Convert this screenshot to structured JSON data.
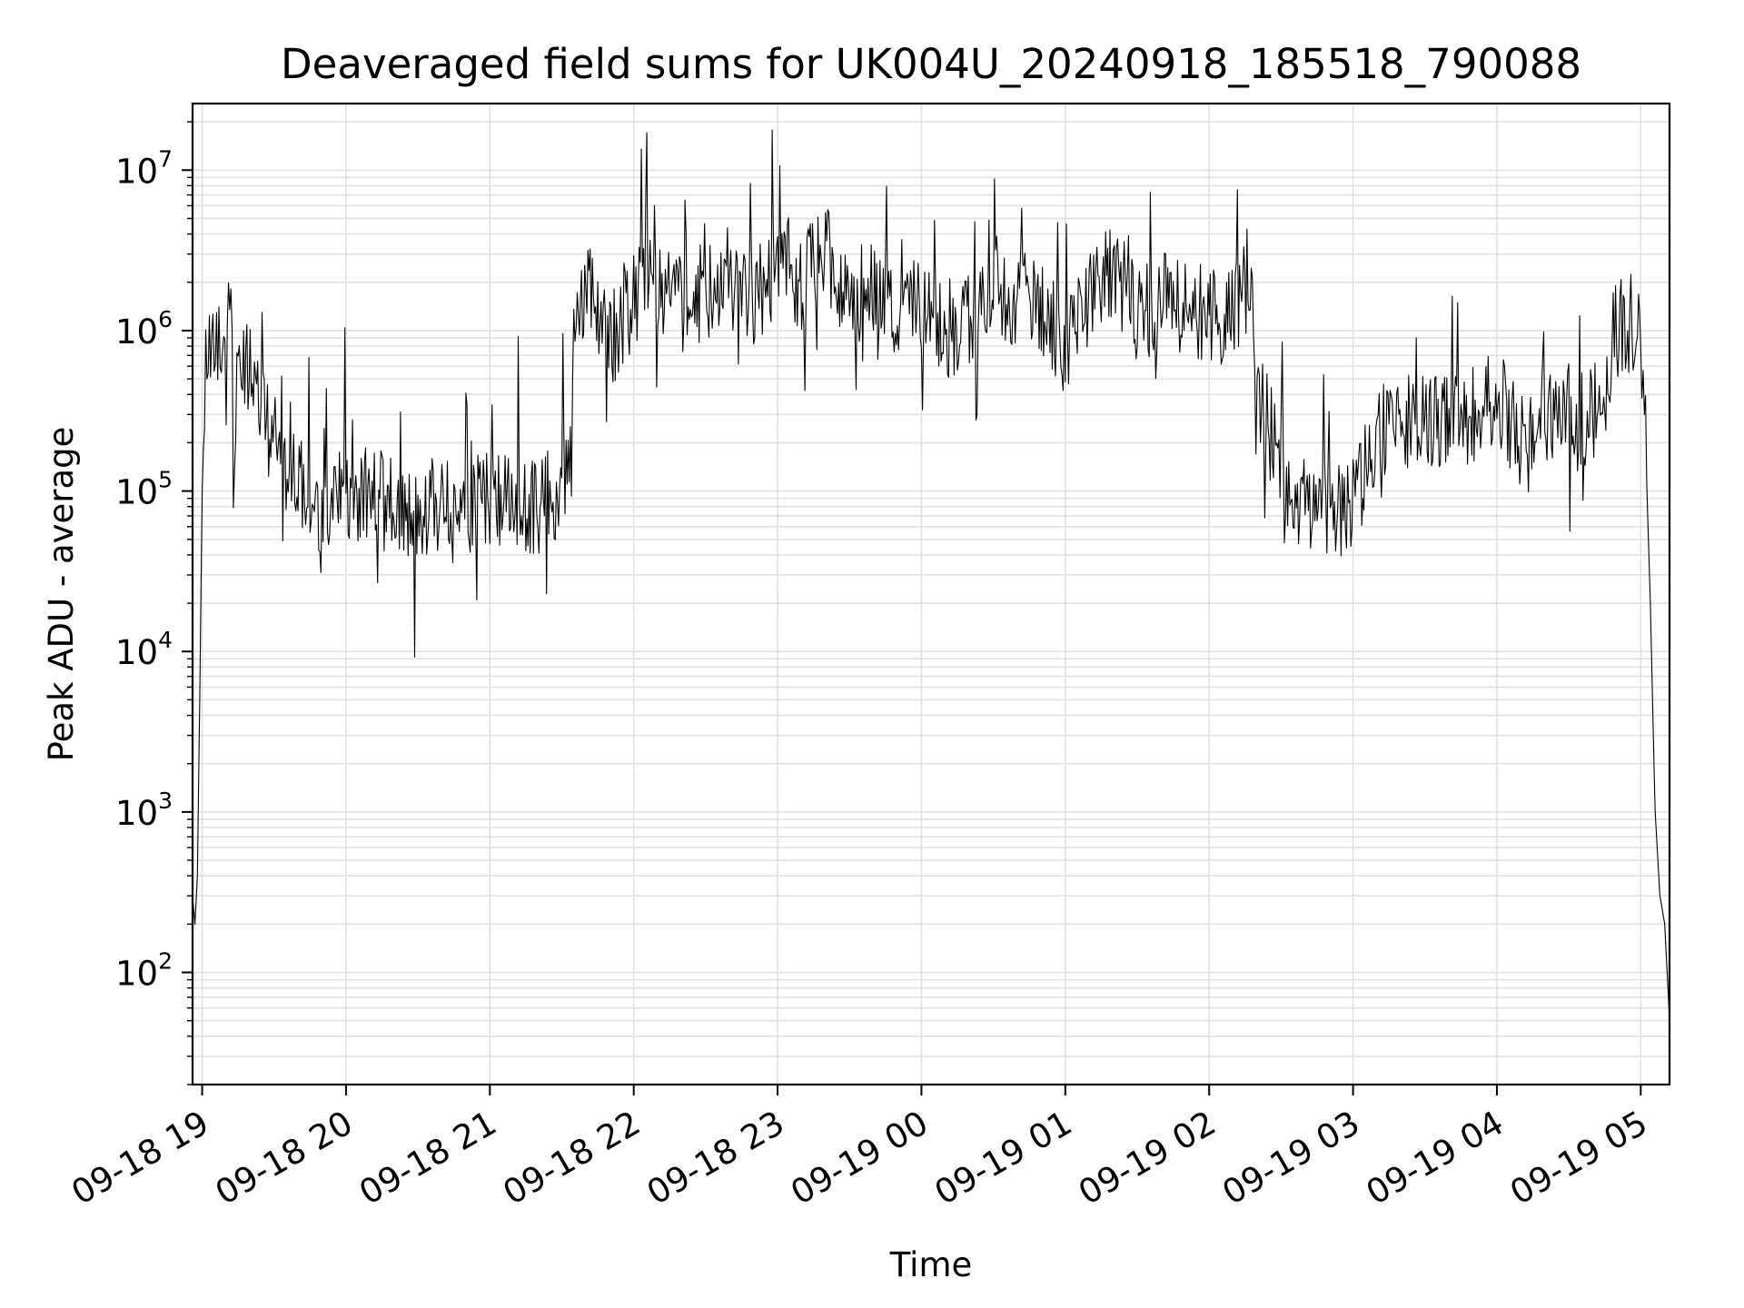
{
  "chart_data": {
    "type": "line",
    "title": "Deaveraged field sums for UK004U_20240918_185518_790088",
    "xlabel": "Time",
    "ylabel": "Peak ADU - average",
    "yscale": "log",
    "ylim": [
      20,
      26000000
    ],
    "xlim": [
      "2024-09-18 18:56",
      "2024-09-19 05:12"
    ],
    "grid": true,
    "line_color": "#000000",
    "grid_color": "#e0e0e0",
    "x_ticks": [
      "09-18 19",
      "09-18 20",
      "09-18 21",
      "09-18 22",
      "09-18 23",
      "09-19 00",
      "09-19 01",
      "09-19 02",
      "09-19 03",
      "09-19 04",
      "09-19 05"
    ],
    "y_ticks": [
      {
        "value": 100,
        "base": "10",
        "exp": "2"
      },
      {
        "value": 1000,
        "base": "10",
        "exp": "3"
      },
      {
        "value": 10000,
        "base": "10",
        "exp": "4"
      },
      {
        "value": 100000,
        "base": "10",
        "exp": "5"
      },
      {
        "value": 1000000,
        "base": "10",
        "exp": "6"
      },
      {
        "value": 10000000,
        "base": "10",
        "exp": "7"
      }
    ],
    "series": [
      {
        "x": [
          "2024-09-18 18:56",
          "2024-09-18 18:57",
          "2024-09-18 18:58",
          "2024-09-18 18:59",
          "2024-09-18 19:00",
          "2024-09-18 19:01",
          "2024-09-18 19:02",
          "2024-09-18 19:04",
          "2024-09-18 19:06",
          "2024-09-18 19:08",
          "2024-09-18 19:10",
          "2024-09-18 19:12",
          "2024-09-18 19:13",
          "2024-09-18 19:15",
          "2024-09-18 19:20",
          "2024-09-18 19:30",
          "2024-09-18 19:40",
          "2024-09-18 19:50",
          "2024-09-18 20:00",
          "2024-09-18 20:10",
          "2024-09-18 20:20",
          "2024-09-18 20:30",
          "2024-09-18 20:40",
          "2024-09-18 20:50",
          "2024-09-18 21:00",
          "2024-09-18 21:10",
          "2024-09-18 21:20",
          "2024-09-18 21:30",
          "2024-09-18 21:34",
          "2024-09-18 21:36",
          "2024-09-18 21:40",
          "2024-09-18 21:50",
          "2024-09-18 22:00",
          "2024-09-18 22:10",
          "2024-09-18 22:20",
          "2024-09-18 22:30",
          "2024-09-18 22:40",
          "2024-09-18 22:50",
          "2024-09-18 23:00",
          "2024-09-18 23:10",
          "2024-09-18 23:20",
          "2024-09-18 23:30",
          "2024-09-18 23:40",
          "2024-09-18 23:50",
          "2024-09-19 00:00",
          "2024-09-19 00:10",
          "2024-09-19 00:20",
          "2024-09-19 00:30",
          "2024-09-19 00:40",
          "2024-09-19 00:50",
          "2024-09-19 01:00",
          "2024-09-19 01:10",
          "2024-09-19 01:20",
          "2024-09-19 01:30",
          "2024-09-19 01:40",
          "2024-09-19 01:50",
          "2024-09-19 02:00",
          "2024-09-19 02:10",
          "2024-09-19 02:18",
          "2024-09-19 02:20",
          "2024-09-19 02:25",
          "2024-09-19 02:30",
          "2024-09-19 02:40",
          "2024-09-19 02:50",
          "2024-09-19 03:00",
          "2024-09-19 03:10",
          "2024-09-19 03:20",
          "2024-09-19 03:30",
          "2024-09-19 03:40",
          "2024-09-19 03:50",
          "2024-09-19 04:00",
          "2024-09-19 04:10",
          "2024-09-19 04:20",
          "2024-09-19 04:30",
          "2024-09-19 04:40",
          "2024-09-19 04:45",
          "2024-09-19 04:48",
          "2024-09-19 04:50",
          "2024-09-19 04:55",
          "2024-09-19 05:00",
          "2024-09-19 05:02",
          "2024-09-19 05:04",
          "2024-09-19 05:06",
          "2024-09-19 05:08",
          "2024-09-19 05:10",
          "2024-09-19 05:12"
        ],
        "y": [
          300,
          200,
          400,
          5000,
          100000,
          500000,
          800000,
          900000,
          1000000,
          900000,
          700000,
          3000000,
          80000,
          600000,
          500000,
          200000,
          120000,
          60000,
          100000,
          90000,
          80000,
          70000,
          80000,
          70000,
          90000,
          80000,
          80000,
          100000,
          150000,
          1200000,
          2000000,
          800000,
          1500000,
          2000000,
          1500000,
          1800000,
          2000000,
          1500000,
          2500000,
          2000000,
          3000000,
          1500000,
          2000000,
          1200000,
          1500000,
          1000000,
          1200000,
          2000000,
          1500000,
          1500000,
          800000,
          1500000,
          2500000,
          1200000,
          1500000,
          1500000,
          1200000,
          1300000,
          2000000,
          400000,
          300000,
          100000,
          80000,
          70000,
          80000,
          200000,
          300000,
          250000,
          300000,
          300000,
          400000,
          200000,
          300000,
          250000,
          300000,
          400000,
          800000,
          1000000,
          1200000,
          800000,
          200000,
          20000,
          1000,
          300,
          200,
          50
        ]
      }
    ]
  }
}
